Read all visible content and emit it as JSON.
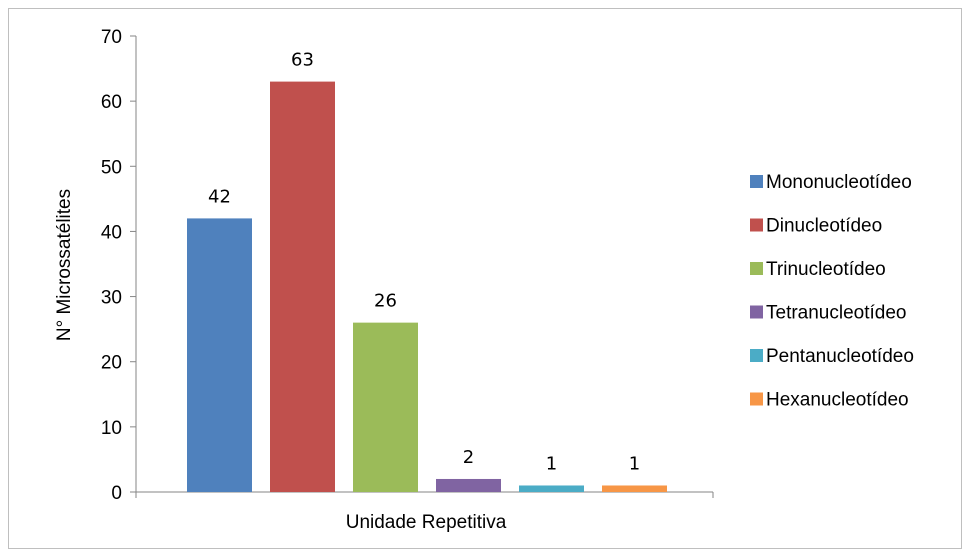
{
  "chart_data": {
    "type": "bar",
    "ylabel": "N° Microssatélites",
    "xlabel": "Unidade Repetitiva",
    "ylim": [
      0,
      70
    ],
    "yticks": [
      0,
      10,
      20,
      30,
      40,
      50,
      60,
      70
    ],
    "grid": false,
    "legend_position": "right",
    "series": [
      {
        "name": "Mononucleotídeo",
        "value": 42,
        "color": "#4f81bd"
      },
      {
        "name": "Dinucleotídeo",
        "value": 63,
        "color": "#c0504d"
      },
      {
        "name": "Trinucleotídeo",
        "value": 26,
        "color": "#9bbb59"
      },
      {
        "name": "Tetranucleotídeo",
        "value": 2,
        "color": "#8064a2"
      },
      {
        "name": "Pentanucleotídeo",
        "value": 1,
        "color": "#4bacc6"
      },
      {
        "name": "Hexanucleotídeo",
        "value": 1,
        "color": "#f79646"
      }
    ]
  }
}
